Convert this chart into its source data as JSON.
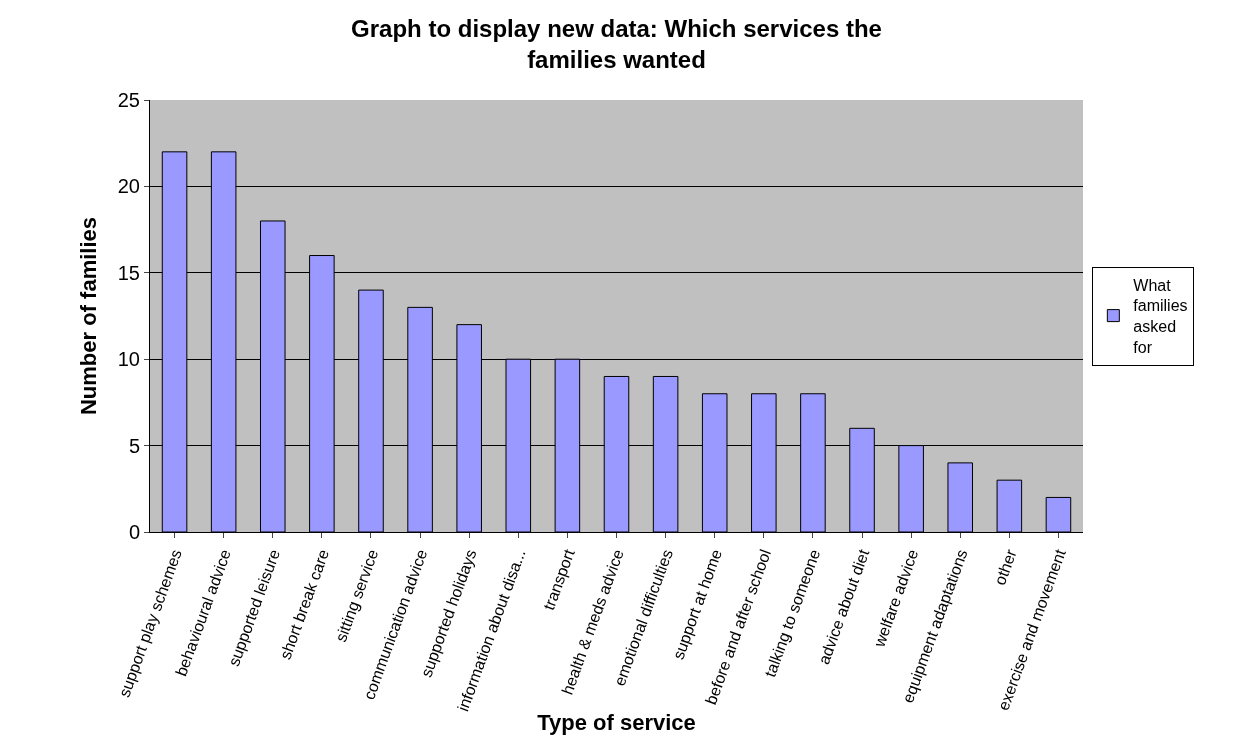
{
  "chart_data": {
    "type": "bar",
    "title": "Graph to display new data: Which services the families wanted",
    "xlabel": "Type of service",
    "ylabel": "Number of families",
    "categories": [
      "support play schemes",
      "behavioural advice",
      "supported leisure",
      "short break care",
      "sitting service",
      "communication advice",
      "supported holidays",
      "information about disa...",
      "transport",
      "health & meds advice",
      "emotional difficulties",
      "support at home",
      "before and after school",
      "talking to someone",
      "advice about diet",
      "welfare advice",
      "equipment adaptations",
      "other",
      "exercise and movement"
    ],
    "series": [
      {
        "name": "What families asked for",
        "color": "#9999ff",
        "values": [
          22,
          22,
          18,
          16,
          14,
          13,
          12,
          10,
          10,
          9,
          9,
          8,
          8,
          8,
          6,
          5,
          4,
          3,
          2
        ]
      }
    ],
    "ylim": [
      0,
      25
    ],
    "yticks": [
      0,
      5,
      10,
      15,
      20,
      25
    ],
    "grid": "y",
    "legend": "right"
  }
}
